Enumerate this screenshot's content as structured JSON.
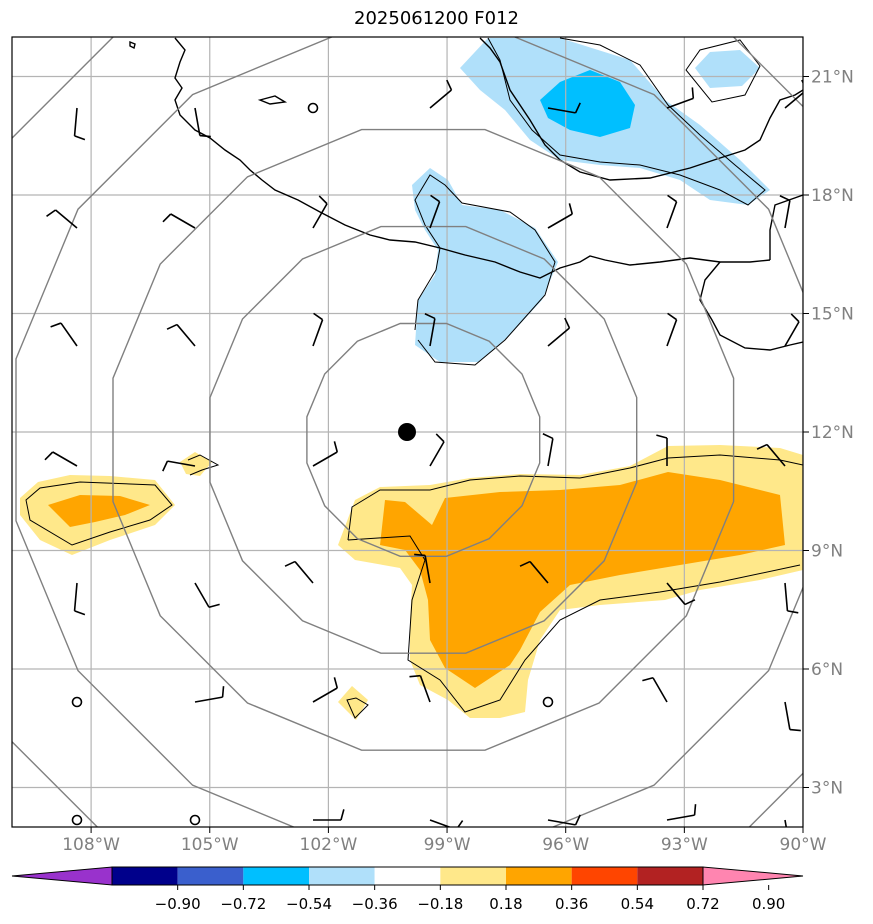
{
  "title": "2025061200 F012",
  "map": {
    "lon_range": [
      -110,
      -90
    ],
    "lat_range": [
      2,
      22
    ],
    "lon_ticks": [
      {
        "value": -108,
        "label": "108°W"
      },
      {
        "value": -105,
        "label": "105°W"
      },
      {
        "value": -102,
        "label": "102°W"
      },
      {
        "value": -99,
        "label": "99°W"
      },
      {
        "value": -96,
        "label": "96°W"
      },
      {
        "value": -93,
        "label": "93°W"
      },
      {
        "value": -90,
        "label": "90°W"
      }
    ],
    "lat_ticks": [
      {
        "value": 3,
        "label": "3°N"
      },
      {
        "value": 6,
        "label": "6°N"
      },
      {
        "value": 9,
        "label": "9°N"
      },
      {
        "value": 12,
        "label": "12°N"
      },
      {
        "value": 15,
        "label": "15°N"
      },
      {
        "value": 18,
        "label": "18°N"
      },
      {
        "value": 21,
        "label": "21°N"
      }
    ],
    "center": {
      "lon": -99.6,
      "lat": 11.8
    },
    "range_rings_deg": [
      3,
      5.5,
      8,
      10.5,
      13
    ]
  },
  "colorbar": {
    "levels": [
      "−0.90",
      "−0.72",
      "−0.54",
      "−0.36",
      "−0.18",
      "0.18",
      "0.36",
      "0.54",
      "0.72",
      "0.90"
    ],
    "colors": [
      "#9932cc",
      "#00008b",
      "#3a5fcd",
      "#00bfff",
      "#b0e0fa",
      "#ffffff",
      "#ffe88a",
      "#ffa500",
      "#ff4500",
      "#b22222",
      "#ff85b0"
    ]
  }
}
